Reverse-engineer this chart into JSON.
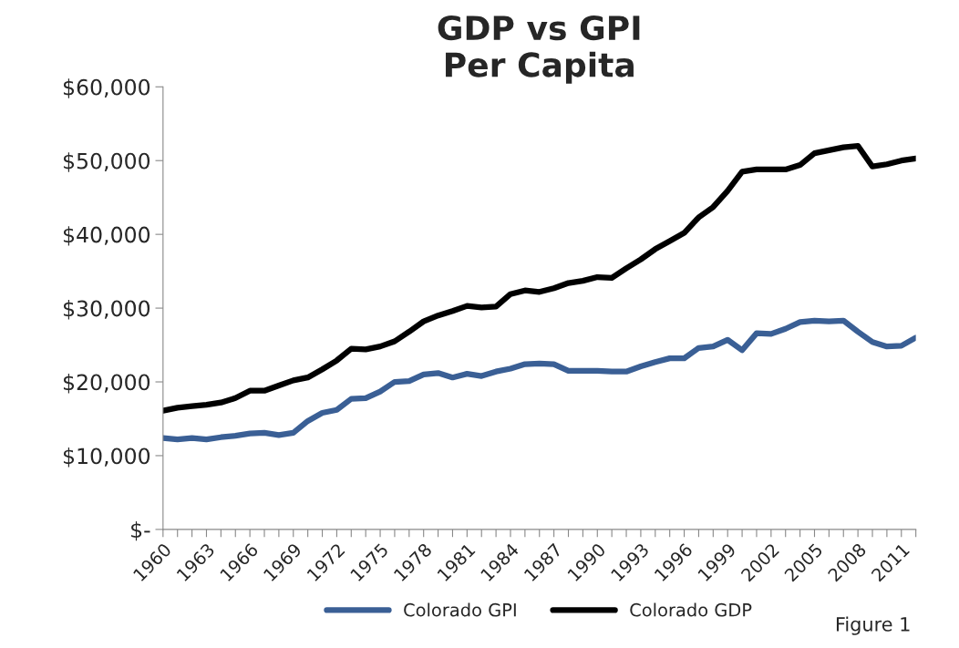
{
  "chart_data": {
    "type": "line",
    "title": "GDP vs GPI\nPer Capita",
    "categories": [
      "1960",
      null,
      null,
      "1963",
      null,
      null,
      "1966",
      null,
      null,
      "1969",
      null,
      null,
      "1972",
      null,
      null,
      "1975",
      null,
      null,
      "1978",
      null,
      null,
      "1981",
      null,
      null,
      "1984",
      null,
      null,
      "1987",
      null,
      null,
      "1990",
      null,
      null,
      "1993",
      null,
      null,
      "1996",
      null,
      null,
      "1999",
      null,
      null,
      "2002",
      null,
      null,
      "2005",
      null,
      null,
      "2008",
      null,
      null,
      "2011",
      null
    ],
    "series": [
      {
        "name": "Colorado GPI",
        "color": "#3a5f95",
        "values": [
          12400,
          12200,
          12400,
          12200,
          12500,
          12700,
          13000,
          13100,
          12800,
          13100,
          14700,
          15800,
          16200,
          17700,
          17800,
          18700,
          20000,
          20100,
          21000,
          21200,
          20600,
          21100,
          20800,
          21400,
          21800,
          22400,
          22500,
          22400,
          21500,
          21500,
          21500,
          21400,
          21400,
          22100,
          22700,
          23200,
          23200,
          24600,
          24800,
          25700,
          24300,
          26600,
          26500,
          27200,
          28100,
          28300,
          28200,
          28300,
          26800,
          25400,
          24800,
          24900,
          26000
        ]
      },
      {
        "name": "Colorado GDP",
        "color": "#000000",
        "values": [
          16100,
          16500,
          16700,
          16900,
          17200,
          17800,
          18800,
          18800,
          19500,
          20200,
          20600,
          21700,
          22900,
          24500,
          24400,
          24800,
          25500,
          26800,
          28200,
          29000,
          29600,
          30300,
          30100,
          30200,
          31900,
          32400,
          32200,
          32700,
          33400,
          33700,
          34200,
          34100,
          35400,
          36600,
          38000,
          39100,
          40200,
          42300,
          43700,
          45900,
          48500,
          48800,
          48800,
          48800,
          49400,
          51000,
          51400,
          51800,
          52000,
          49200,
          49500,
          50000,
          50300
        ]
      }
    ],
    "ylim": [
      0,
      60000
    ],
    "yticks": [
      {
        "value": 0,
        "label": "$-"
      },
      {
        "value": 10000,
        "label": "$10,000"
      },
      {
        "value": 20000,
        "label": "$20,000"
      },
      {
        "value": 30000,
        "label": "$30,000"
      },
      {
        "value": 40000,
        "label": "$40,000"
      },
      {
        "value": 50000,
        "label": "$50,000"
      },
      {
        "value": 60000,
        "label": "$60,000"
      }
    ],
    "grid": false,
    "legend": "bottom",
    "line_style": "solid",
    "marker": "none",
    "annotations": [
      "Figure 1"
    ]
  }
}
